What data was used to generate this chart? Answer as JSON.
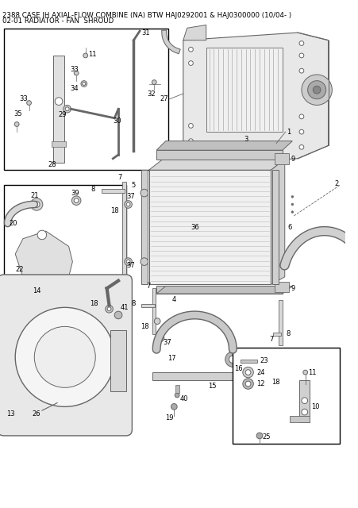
{
  "title_line1": "2388 CASE IH AXIAL-FLOW COMBINE (NA) BTW HAJ0292001 & HAJ0300000 (10/04- )",
  "title_line2": "02-01 RADIATOR - FAN  SHROUD",
  "bg_color": "#ffffff",
  "text_color": "#000000",
  "line_color": "#666666",
  "fig_width": 4.52,
  "fig_height": 6.4,
  "dpi": 100
}
